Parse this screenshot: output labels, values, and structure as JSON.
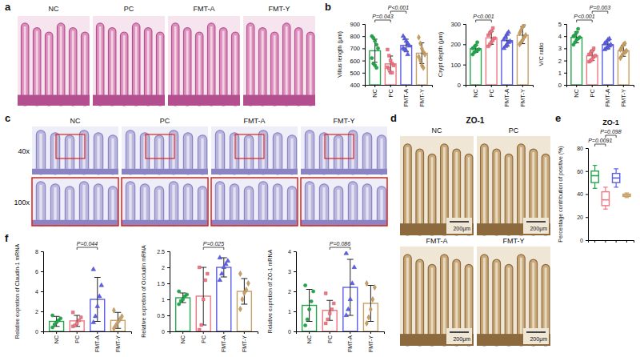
{
  "figure": {
    "panel_letters": [
      "a",
      "b",
      "c",
      "d",
      "e",
      "f"
    ]
  },
  "image_panels": [
    {
      "labels": [
        "NC",
        "PC",
        "FMT-A",
        "FMT-Y"
      ]
    },
    {
      "labels": [
        "NC",
        "PC",
        "FMT-A",
        "FMT-Y"
      ],
      "row_labels": [
        "40x",
        "100x"
      ]
    },
    {
      "title": "ZO-1",
      "labels": [
        "NC",
        "PC",
        "FMT-A",
        "FMT-Y"
      ],
      "scale_bar": "200μm"
    }
  ],
  "chart_data": [
    {
      "type": "bar",
      "ylabel": "Villus length (μm)",
      "categories": [
        "NC",
        "PC",
        "FMT-A",
        "FMT-Y"
      ],
      "colors": [
        "#22a84a",
        "#f07682",
        "#5b5ee6",
        "#c9a063"
      ],
      "values": [
        680,
        572,
        725,
        660
      ],
      "errors": [
        95,
        65,
        50,
        85
      ],
      "points": [
        [
          800,
          785,
          760,
          730,
          700,
          620,
          575,
          560,
          540
        ],
        [
          690,
          640,
          600,
          575,
          560,
          545,
          530,
          500,
          500
        ],
        [
          800,
          780,
          760,
          740,
          720,
          700,
          690,
          680,
          650
        ],
        [
          790,
          740,
          700,
          670,
          650,
          630,
          600,
          560,
          540
        ]
      ],
      "ylim": [
        400,
        900
      ],
      "yticks": [
        400,
        500,
        600,
        700,
        800,
        900
      ],
      "annotations": [
        {
          "from": 0,
          "to": 1,
          "text": "P=0.043"
        },
        {
          "from": 1,
          "to": 2,
          "text": "P<0.001"
        }
      ]
    },
    {
      "type": "bar",
      "ylabel": "Crypt depth (μm)",
      "categories": [
        "NC",
        "PC",
        "FMT-A",
        "FMT-Y"
      ],
      "colors": [
        "#22a84a",
        "#f07682",
        "#5b5ee6",
        "#c9a063"
      ],
      "values": [
        178,
        232,
        218,
        245
      ],
      "errors": [
        18,
        32,
        28,
        42
      ],
      "points": [
        [
          150,
          160,
          165,
          170,
          175,
          180,
          185,
          195,
          210
        ],
        [
          190,
          200,
          210,
          220,
          230,
          245,
          255,
          265,
          280
        ],
        [
          180,
          190,
          200,
          210,
          215,
          225,
          235,
          250,
          260
        ],
        [
          200,
          210,
          220,
          235,
          245,
          255,
          270,
          285,
          295
        ]
      ],
      "ylim": [
        0,
        300
      ],
      "yticks": [
        0,
        100,
        200,
        300
      ],
      "annotations": [
        {
          "from": 0,
          "to": 1,
          "text": "P<0.001"
        }
      ]
    },
    {
      "type": "bar",
      "ylabel": "V/C ratio",
      "categories": [
        "NC",
        "PC",
        "FMT-A",
        "FMT-Y"
      ],
      "colors": [
        "#22a84a",
        "#f07682",
        "#5b5ee6",
        "#c9a063"
      ],
      "values": [
        3.9,
        2.4,
        3.3,
        2.8
      ],
      "errors": [
        0.45,
        0.4,
        0.35,
        0.45
      ],
      "points": [
        [
          3.3,
          3.5,
          3.7,
          3.8,
          3.9,
          4.0,
          4.1,
          4.3,
          4.6
        ],
        [
          1.9,
          2.0,
          2.1,
          2.3,
          2.4,
          2.5,
          2.6,
          2.8,
          3.0
        ],
        [
          2.9,
          3.0,
          3.1,
          3.2,
          3.3,
          3.4,
          3.5,
          3.7,
          3.8
        ],
        [
          2.2,
          2.4,
          2.6,
          2.7,
          2.8,
          2.9,
          3.1,
          3.3,
          3.4
        ]
      ],
      "ylim": [
        0,
        5
      ],
      "yticks": [
        0,
        1,
        2,
        3,
        4,
        5
      ],
      "annotations": [
        {
          "from": 0,
          "to": 1,
          "text": "P<0.001"
        },
        {
          "from": 1,
          "to": 2,
          "text": "P=0.003"
        }
      ]
    },
    {
      "type": "box",
      "title": "ZO-1",
      "ylabel": "Percentage contribution of positive (%)",
      "categories": [
        "NC",
        "PC",
        "FMT-A",
        "FMT-Y"
      ],
      "colors": [
        "#22a84a",
        "#f07682",
        "#5b5ee6",
        "#c9a063"
      ],
      "min": [
        45,
        27,
        46,
        37
      ],
      "q1": [
        50,
        30,
        50,
        38
      ],
      "median": [
        56,
        35,
        54,
        39
      ],
      "q3": [
        60,
        42,
        58,
        40
      ],
      "max": [
        65,
        46,
        62,
        41
      ],
      "ylim": [
        0,
        80
      ],
      "yticks": [
        0,
        20,
        40,
        60,
        80
      ],
      "tick_labels": "y",
      "annotations": [
        {
          "from": 0,
          "to": 1,
          "text": "P=0.0091"
        },
        {
          "from": 1,
          "to": 2,
          "text": "P=0.098"
        }
      ]
    },
    {
      "type": "bar",
      "ylabel": "Relative expretion of Claudin-1 mRNA",
      "categories": [
        "NC",
        "PC",
        "FMT-A",
        "FMT-Y"
      ],
      "colors": [
        "#22a84a",
        "#f07682",
        "#5b5ee6",
        "#c9a063"
      ],
      "values": [
        1.0,
        1.05,
        3.2,
        1.1
      ],
      "errors": [
        0.5,
        0.55,
        2.2,
        0.8
      ],
      "points": [
        [
          0.4,
          0.7,
          0.9,
          1.1,
          1.3,
          1.6
        ],
        [
          0.5,
          0.6,
          0.8,
          1.1,
          1.4,
          1.9
        ],
        [
          0.9,
          1.5,
          2.5,
          3.5,
          4.6,
          6.2
        ],
        [
          0.3,
          0.6,
          0.9,
          1.2,
          1.5,
          2.1
        ]
      ],
      "ylim": [
        0,
        8
      ],
      "yticks": [
        0,
        2,
        4,
        6,
        8
      ],
      "annotations": [
        {
          "from": 1,
          "to": 2,
          "text": "P=0.044"
        }
      ]
    },
    {
      "type": "bar",
      "ylabel": "Relative expretion of Occludin mRNA",
      "categories": [
        "NC",
        "PC",
        "FMT-A",
        "FMT-Y"
      ],
      "colors": [
        "#22a84a",
        "#f07682",
        "#5b5ee6",
        "#c9a063"
      ],
      "values": [
        1.05,
        1.1,
        2.0,
        1.25
      ],
      "errors": [
        0.15,
        0.9,
        0.3,
        0.4
      ],
      "points": [
        [
          0.85,
          0.95,
          1.0,
          1.1,
          1.15,
          1.25
        ],
        [
          0.05,
          0.2,
          1.0,
          1.6,
          1.8,
          2.0
        ],
        [
          1.6,
          1.8,
          2.0,
          2.1,
          2.2,
          2.3
        ],
        [
          0.7,
          1.0,
          1.2,
          1.3,
          1.5,
          1.8
        ]
      ],
      "ylim": [
        0,
        2.5
      ],
      "yticks": [
        0,
        0.5,
        1,
        1.5,
        2,
        2.5
      ],
      "annotations": [
        {
          "from": 1,
          "to": 2,
          "text": "P=0.025"
        }
      ]
    },
    {
      "type": "bar",
      "ylabel": "Relative expretion of ZO-1 mRNA",
      "categories": [
        "NC",
        "PC",
        "FMT-A",
        "FMT-Y"
      ],
      "colors": [
        "#22a84a",
        "#f07682",
        "#5b5ee6",
        "#c9a063"
      ],
      "values": [
        1.3,
        1.05,
        2.2,
        1.4
      ],
      "errors": [
        0.8,
        0.5,
        1.4,
        0.9
      ],
      "points": [
        [
          0.3,
          0.6,
          1.1,
          1.5,
          2.0,
          2.3
        ],
        [
          0.4,
          0.6,
          0.9,
          1.1,
          1.4,
          1.9
        ],
        [
          0.8,
          1.1,
          1.6,
          2.4,
          3.2,
          3.9
        ],
        [
          0.4,
          0.7,
          1.1,
          1.6,
          2.2,
          2.4
        ]
      ],
      "ylim": [
        0,
        4
      ],
      "yticks": [
        0,
        1,
        2,
        3,
        4
      ],
      "annotations": [
        {
          "from": 1,
          "to": 2,
          "text": "P=0.086"
        }
      ]
    }
  ]
}
